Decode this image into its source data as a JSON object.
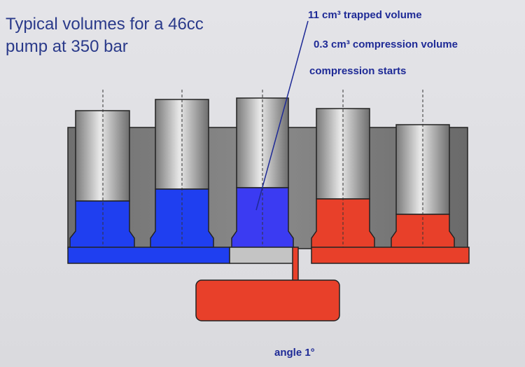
{
  "title": {
    "lines": [
      "Typical volumes for a 46cc",
      "pump at 350 bar"
    ]
  },
  "labels": {
    "trapped": "11 cm³ trapped volume",
    "compression": "0.3 cm³ compression volume",
    "starts": "compression starts"
  },
  "angle": "angle  1°"
}
